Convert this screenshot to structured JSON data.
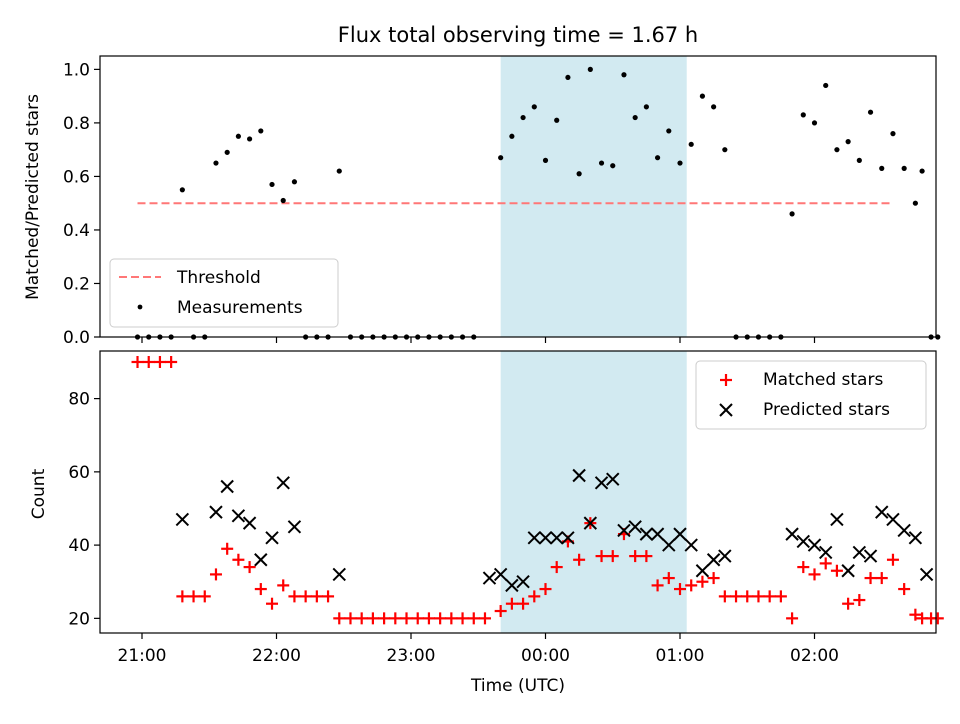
{
  "figure": {
    "title": "Flux total observing time = 1.67 h"
  },
  "chart_data": [
    {
      "type": "scatter",
      "title": "Flux total observing time = 1.67 h",
      "ylabel": "Matched/Predicted stars",
      "ylim": [
        0.0,
        1.05
      ],
      "yticks": [
        0.0,
        0.2,
        0.4,
        0.6,
        0.8,
        1.0
      ],
      "ytick_labels": [
        "0.0",
        "0.2",
        "0.4",
        "0.6",
        "0.8",
        "1.0"
      ],
      "threshold": {
        "name": "Threshold",
        "value": 0.5,
        "x_start": "20:58",
        "x_end": "02:35",
        "color": "#ff7777"
      },
      "highlight_span": {
        "start": "23:40",
        "end": "01:03",
        "color": "#add8e6"
      },
      "legend": {
        "position": "lower-left",
        "entries": [
          "Threshold",
          "Measurements"
        ]
      },
      "series": [
        {
          "name": "Measurements",
          "marker": "dot",
          "color": "#000000",
          "points": [
            [
              "20:58",
              0.0
            ],
            [
              "21:03",
              0.0
            ],
            [
              "21:08",
              0.0
            ],
            [
              "21:13",
              0.0
            ],
            [
              "21:18",
              0.55
            ],
            [
              "21:23",
              0.0
            ],
            [
              "21:28",
              0.0
            ],
            [
              "21:33",
              0.65
            ],
            [
              "21:38",
              0.69
            ],
            [
              "21:43",
              0.75
            ],
            [
              "21:48",
              0.74
            ],
            [
              "21:53",
              0.77
            ],
            [
              "21:58",
              0.57
            ],
            [
              "22:03",
              0.51
            ],
            [
              "22:08",
              0.58
            ],
            [
              "22:13",
              0.0
            ],
            [
              "22:18",
              0.0
            ],
            [
              "22:23",
              0.0
            ],
            [
              "22:28",
              0.62
            ],
            [
              "22:33",
              0.0
            ],
            [
              "22:38",
              0.0
            ],
            [
              "22:43",
              0.0
            ],
            [
              "22:48",
              0.0
            ],
            [
              "22:53",
              0.0
            ],
            [
              "22:58",
              0.0
            ],
            [
              "23:03",
              0.0
            ],
            [
              "23:08",
              0.0
            ],
            [
              "23:13",
              0.0
            ],
            [
              "23:18",
              0.0
            ],
            [
              "23:23",
              0.0
            ],
            [
              "23:28",
              0.0
            ],
            [
              "23:40",
              0.67
            ],
            [
              "23:45",
              0.75
            ],
            [
              "23:50",
              0.82
            ],
            [
              "23:55",
              0.86
            ],
            [
              "00:00",
              0.66
            ],
            [
              "00:05",
              0.81
            ],
            [
              "00:10",
              0.97
            ],
            [
              "00:15",
              0.61
            ],
            [
              "00:20",
              1.0
            ],
            [
              "00:25",
              0.65
            ],
            [
              "00:30",
              0.64
            ],
            [
              "00:35",
              0.98
            ],
            [
              "00:40",
              0.82
            ],
            [
              "00:45",
              0.86
            ],
            [
              "00:50",
              0.67
            ],
            [
              "00:55",
              0.77
            ],
            [
              "01:00",
              0.65
            ],
            [
              "01:05",
              0.72
            ],
            [
              "01:10",
              0.9
            ],
            [
              "01:15",
              0.86
            ],
            [
              "01:20",
              0.7
            ],
            [
              "01:25",
              0.0
            ],
            [
              "01:30",
              0.0
            ],
            [
              "01:35",
              0.0
            ],
            [
              "01:40",
              0.0
            ],
            [
              "01:45",
              0.0
            ],
            [
              "01:50",
              0.46
            ],
            [
              "01:55",
              0.83
            ],
            [
              "02:00",
              0.8
            ],
            [
              "02:05",
              0.94
            ],
            [
              "02:10",
              0.7
            ],
            [
              "02:15",
              0.73
            ],
            [
              "02:20",
              0.66
            ],
            [
              "02:25",
              0.84
            ],
            [
              "02:30",
              0.63
            ],
            [
              "02:35",
              0.76
            ],
            [
              "02:40",
              0.63
            ],
            [
              "02:45",
              0.5
            ],
            [
              "02:48",
              0.62
            ],
            [
              "02:52",
              0.0
            ],
            [
              "02:55",
              0.0
            ]
          ]
        }
      ]
    },
    {
      "type": "scatter",
      "xlabel": "Time (UTC)",
      "ylabel": "Count",
      "ylim": [
        16,
        93
      ],
      "yticks": [
        20,
        40,
        60,
        80
      ],
      "ytick_labels": [
        "20",
        "40",
        "60",
        "80"
      ],
      "xticks": [
        "21:00",
        "22:00",
        "23:00",
        "00:00",
        "01:00",
        "02:00"
      ],
      "legend": {
        "position": "top-right",
        "entries": [
          "Matched stars",
          "Predicted stars"
        ]
      },
      "highlight_span": {
        "start": "23:40",
        "end": "01:03",
        "color": "#add8e6"
      },
      "series": [
        {
          "name": "Matched stars",
          "marker": "plus",
          "color": "#ff0000",
          "points": [
            [
              "20:58",
              90
            ],
            [
              "21:03",
              90
            ],
            [
              "21:08",
              90
            ],
            [
              "21:13",
              90
            ],
            [
              "21:18",
              26
            ],
            [
              "21:23",
              26
            ],
            [
              "21:28",
              26
            ],
            [
              "21:33",
              32
            ],
            [
              "21:38",
              39
            ],
            [
              "21:43",
              36
            ],
            [
              "21:48",
              34
            ],
            [
              "21:53",
              28
            ],
            [
              "21:58",
              24
            ],
            [
              "22:03",
              29
            ],
            [
              "22:08",
              26
            ],
            [
              "22:13",
              26
            ],
            [
              "22:18",
              26
            ],
            [
              "22:23",
              26
            ],
            [
              "22:28",
              20
            ],
            [
              "22:33",
              20
            ],
            [
              "22:38",
              20
            ],
            [
              "22:43",
              20
            ],
            [
              "22:48",
              20
            ],
            [
              "22:53",
              20
            ],
            [
              "22:58",
              20
            ],
            [
              "23:03",
              20
            ],
            [
              "23:08",
              20
            ],
            [
              "23:13",
              20
            ],
            [
              "23:18",
              20
            ],
            [
              "23:23",
              20
            ],
            [
              "23:28",
              20
            ],
            [
              "23:33",
              20
            ],
            [
              "23:40",
              22
            ],
            [
              "23:45",
              24
            ],
            [
              "23:50",
              24
            ],
            [
              "23:55",
              26
            ],
            [
              "00:00",
              28
            ],
            [
              "00:05",
              34
            ],
            [
              "00:10",
              41
            ],
            [
              "00:15",
              36
            ],
            [
              "00:20",
              46
            ],
            [
              "00:25",
              37
            ],
            [
              "00:30",
              37
            ],
            [
              "00:35",
              43
            ],
            [
              "00:40",
              37
            ],
            [
              "00:45",
              37
            ],
            [
              "00:50",
              29
            ],
            [
              "00:55",
              31
            ],
            [
              "01:00",
              28
            ],
            [
              "01:05",
              29
            ],
            [
              "01:10",
              30
            ],
            [
              "01:15",
              31
            ],
            [
              "01:20",
              26
            ],
            [
              "01:25",
              26
            ],
            [
              "01:30",
              26
            ],
            [
              "01:35",
              26
            ],
            [
              "01:40",
              26
            ],
            [
              "01:45",
              26
            ],
            [
              "01:50",
              20
            ],
            [
              "01:55",
              34
            ],
            [
              "02:00",
              32
            ],
            [
              "02:05",
              35
            ],
            [
              "02:10",
              33
            ],
            [
              "02:15",
              24
            ],
            [
              "02:20",
              25
            ],
            [
              "02:25",
              31
            ],
            [
              "02:30",
              31
            ],
            [
              "02:35",
              36
            ],
            [
              "02:40",
              28
            ],
            [
              "02:45",
              21
            ],
            [
              "02:48",
              20
            ],
            [
              "02:52",
              20
            ],
            [
              "02:55",
              20
            ]
          ]
        },
        {
          "name": "Predicted stars",
          "marker": "x",
          "color": "#000000",
          "points": [
            [
              "21:18",
              47
            ],
            [
              "21:33",
              49
            ],
            [
              "21:38",
              56
            ],
            [
              "21:43",
              48
            ],
            [
              "21:48",
              46
            ],
            [
              "21:53",
              36
            ],
            [
              "21:58",
              42
            ],
            [
              "22:03",
              57
            ],
            [
              "22:08",
              45
            ],
            [
              "22:28",
              32
            ],
            [
              "23:35",
              31
            ],
            [
              "23:40",
              32
            ],
            [
              "23:45",
              29
            ],
            [
              "23:50",
              30
            ],
            [
              "23:55",
              42
            ],
            [
              "00:00",
              42
            ],
            [
              "00:05",
              42
            ],
            [
              "00:10",
              42
            ],
            [
              "00:15",
              59
            ],
            [
              "00:20",
              46
            ],
            [
              "00:25",
              57
            ],
            [
              "00:30",
              58
            ],
            [
              "00:35",
              44
            ],
            [
              "00:40",
              45
            ],
            [
              "00:45",
              43
            ],
            [
              "00:50",
              43
            ],
            [
              "00:55",
              40
            ],
            [
              "01:00",
              43
            ],
            [
              "01:05",
              40
            ],
            [
              "01:10",
              33
            ],
            [
              "01:15",
              36
            ],
            [
              "01:20",
              37
            ],
            [
              "01:50",
              43
            ],
            [
              "01:55",
              41
            ],
            [
              "02:00",
              40
            ],
            [
              "02:05",
              38
            ],
            [
              "02:10",
              47
            ],
            [
              "02:15",
              33
            ],
            [
              "02:20",
              38
            ],
            [
              "02:25",
              37
            ],
            [
              "02:30",
              49
            ],
            [
              "02:35",
              47
            ],
            [
              "02:40",
              44
            ],
            [
              "02:45",
              42
            ],
            [
              "02:50",
              32
            ]
          ]
        }
      ]
    }
  ]
}
